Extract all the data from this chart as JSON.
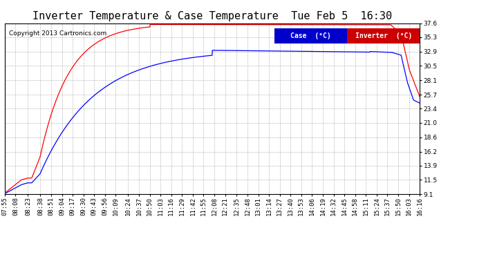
{
  "title": "Inverter Temperature & Case Temperature  Tue Feb 5  16:30",
  "copyright": "Copyright 2013 Cartronics.com",
  "legend_labels": [
    "Case  (°C)",
    "Inverter  (°C)"
  ],
  "case_color": "#0000ff",
  "inverter_color": "#ff0000",
  "case_legend_bg": "#0000cc",
  "inverter_legend_bg": "#cc0000",
  "bg_color": "#ffffff",
  "plot_bg_color": "#ffffff",
  "grid_color": "#aaaaaa",
  "ylim": [
    9.1,
    37.6
  ],
  "yticks": [
    9.1,
    11.5,
    13.9,
    16.2,
    18.6,
    21.0,
    23.4,
    25.7,
    28.1,
    30.5,
    32.9,
    35.3,
    37.6
  ],
  "xtick_labels": [
    "07:55",
    "08:08",
    "08:23",
    "08:38",
    "08:51",
    "09:04",
    "09:17",
    "09:30",
    "09:43",
    "09:56",
    "10:09",
    "10:24",
    "10:37",
    "10:50",
    "11:03",
    "11:16",
    "11:29",
    "11:42",
    "11:55",
    "12:08",
    "12:21",
    "12:35",
    "12:48",
    "13:01",
    "13:14",
    "13:27",
    "13:40",
    "13:53",
    "14:06",
    "14:19",
    "14:32",
    "14:45",
    "14:58",
    "15:11",
    "15:24",
    "15:37",
    "15:50",
    "16:03",
    "16:16"
  ],
  "title_fontsize": 11,
  "copyright_fontsize": 6.5,
  "tick_fontsize": 6.5,
  "legend_fontsize": 7
}
